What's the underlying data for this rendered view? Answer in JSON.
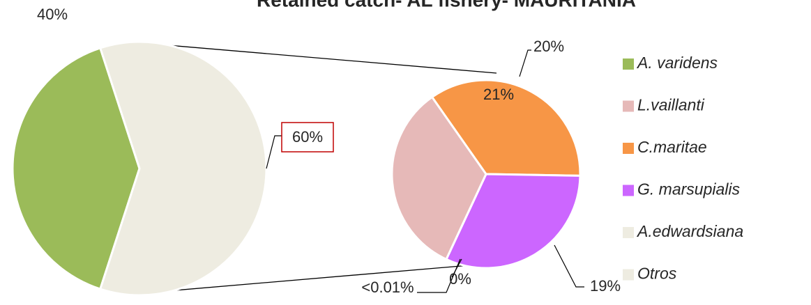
{
  "chart_data": {
    "type": "pie-of-pie",
    "title": "Retained catch- AL fishery- MAURITANIA",
    "categories": [
      "A. varidens",
      "L.vaillanti",
      "C.maritae",
      "G. marsupialis",
      "A.edwardsiana",
      "Otros"
    ],
    "values": [
      40,
      20,
      21,
      19,
      0,
      0
    ],
    "value_labels": [
      "40%",
      "20%",
      "21%",
      "19%",
      "<0.01%",
      "0%"
    ],
    "colors": [
      "#9bbb59",
      "#e6b9b8",
      "#f79646",
      "#cc66ff",
      "#eeece1",
      "#eeece1"
    ],
    "secondary_total": 60,
    "secondary_total_label": "60%",
    "legend": "right"
  }
}
